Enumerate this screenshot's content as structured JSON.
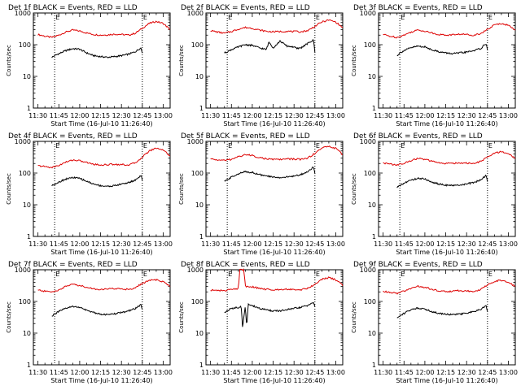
{
  "colors": {
    "events": "#000000",
    "lld": "#dd0000",
    "axis": "#000000",
    "marker": "#000000"
  },
  "chart_data": [
    {
      "type": "line",
      "title": "Det 1f BLACK = Events, RED = LLD",
      "xlabel": "Start Time (16-Jul-10 11:26:40)",
      "ylabel": "Counts/sec",
      "x_ticks": [
        "11:30",
        "11:45",
        "12:00",
        "12:15",
        "12:30",
        "12:45",
        "13:00"
      ],
      "y_ticks": [
        "1",
        "10",
        "100",
        "1000"
      ],
      "ylim": [
        1,
        1000
      ],
      "y_scale": "log",
      "x_units": "minutes after 11:30",
      "xlim": [
        -3.3,
        95
      ],
      "markers": [
        {
          "label": "E",
          "x": 12
        },
        {
          "label": "E",
          "x": 75
        }
      ],
      "series": [
        {
          "color": "red",
          "x": [
            0,
            5,
            10,
            15,
            20,
            25,
            30,
            35,
            40,
            45,
            50,
            55,
            60,
            65,
            70,
            75,
            80,
            85,
            90,
            95
          ],
          "values": [
            210,
            185,
            170,
            200,
            250,
            290,
            270,
            235,
            210,
            200,
            205,
            215,
            210,
            200,
            230,
            330,
            470,
            540,
            470,
            300
          ]
        },
        {
          "color": "black",
          "x": [
            10,
            12,
            15,
            20,
            25,
            30,
            35,
            40,
            45,
            50,
            55,
            60,
            65,
            70,
            74,
            75
          ],
          "values": [
            40,
            45,
            52,
            65,
            75,
            72,
            55,
            45,
            42,
            40,
            42,
            45,
            50,
            60,
            80,
            55
          ]
        }
      ]
    },
    {
      "type": "line",
      "title": "Det 2f BLACK = Events, RED = LLD",
      "xlabel": "Start Time (16-Jul-10 11:26:40)",
      "ylabel": "Counts/sec",
      "x_ticks": [
        "11:30",
        "11:45",
        "12:00",
        "12:15",
        "12:30",
        "12:45",
        "13:00"
      ],
      "y_ticks": [
        "1",
        "10",
        "100",
        "1000"
      ],
      "ylim": [
        1,
        1000
      ],
      "y_scale": "log",
      "x_units": "minutes after 11:30",
      "xlim": [
        -3.3,
        95
      ],
      "markers": [
        {
          "label": "E",
          "x": 12
        },
        {
          "label": "E",
          "x": 75
        }
      ],
      "series": [
        {
          "color": "red",
          "x": [
            0,
            5,
            10,
            15,
            20,
            25,
            30,
            35,
            40,
            45,
            50,
            55,
            60,
            65,
            70,
            75,
            80,
            85,
            90,
            95
          ],
          "values": [
            280,
            250,
            230,
            260,
            310,
            350,
            330,
            290,
            265,
            255,
            260,
            265,
            260,
            255,
            280,
            380,
            520,
            600,
            520,
            340
          ]
        },
        {
          "color": "black",
          "x": [
            10,
            12,
            15,
            20,
            25,
            30,
            35,
            40,
            42,
            45,
            50,
            55,
            60,
            62,
            65,
            70,
            74,
            75
          ],
          "values": [
            55,
            60,
            70,
            85,
            100,
            95,
            80,
            70,
            120,
            80,
            130,
            90,
            85,
            75,
            80,
            110,
            140,
            60
          ]
        }
      ]
    },
    {
      "type": "line",
      "title": "Det 3f BLACK = Events, RED = LLD",
      "xlabel": "Start Time (16-Jul-10 11:26:40)",
      "ylabel": "Counts/sec",
      "x_ticks": [
        "11:30",
        "11:45",
        "12:00",
        "12:15",
        "12:30",
        "12:45",
        "13:00"
      ],
      "y_ticks": [
        "1",
        "10",
        "100",
        "1000"
      ],
      "ylim": [
        1,
        1000
      ],
      "y_scale": "log",
      "x_units": "minutes after 11:30",
      "xlim": [
        -3.3,
        95
      ],
      "markers": [
        {
          "label": "E",
          "x": 12
        },
        {
          "label": "E",
          "x": 75
        }
      ],
      "series": [
        {
          "color": "red",
          "x": [
            0,
            5,
            10,
            15,
            20,
            25,
            30,
            35,
            40,
            45,
            50,
            55,
            60,
            65,
            70,
            75,
            80,
            85,
            90,
            95
          ],
          "values": [
            210,
            185,
            170,
            200,
            250,
            290,
            270,
            235,
            210,
            200,
            205,
            215,
            210,
            200,
            225,
            300,
            420,
            470,
            410,
            290
          ]
        },
        {
          "color": "black",
          "x": [
            10,
            12,
            15,
            20,
            25,
            30,
            35,
            40,
            45,
            50,
            55,
            60,
            65,
            70,
            74,
            75
          ],
          "values": [
            45,
            55,
            65,
            80,
            90,
            85,
            70,
            60,
            55,
            52,
            55,
            58,
            65,
            75,
            110,
            70
          ]
        }
      ]
    },
    {
      "type": "line",
      "title": "Det 4f BLACK = Events, RED = LLD",
      "xlabel": "Start Time (16-Jul-10 11:26:40)",
      "ylabel": "Counts/sec",
      "x_ticks": [
        "11:30",
        "11:45",
        "12:00",
        "12:15",
        "12:30",
        "12:45",
        "13:00"
      ],
      "y_ticks": [
        "1",
        "10",
        "100",
        "1000"
      ],
      "ylim": [
        1,
        1000
      ],
      "y_scale": "log",
      "x_units": "minutes after 11:30",
      "xlim": [
        -3.3,
        95
      ],
      "markers": [
        {
          "label": "E",
          "x": 12
        },
        {
          "label": "E",
          "x": 75
        }
      ],
      "series": [
        {
          "color": "red",
          "x": [
            0,
            5,
            10,
            15,
            20,
            25,
            30,
            35,
            40,
            45,
            50,
            55,
            60,
            65,
            70,
            75,
            80,
            85,
            90,
            95
          ],
          "values": [
            170,
            160,
            150,
            175,
            220,
            260,
            245,
            215,
            190,
            180,
            185,
            190,
            185,
            180,
            210,
            320,
            500,
            620,
            540,
            350
          ]
        },
        {
          "color": "black",
          "x": [
            10,
            12,
            15,
            20,
            25,
            30,
            35,
            40,
            45,
            50,
            55,
            60,
            65,
            70,
            74,
            75
          ],
          "values": [
            40,
            45,
            52,
            65,
            72,
            68,
            55,
            45,
            40,
            38,
            40,
            45,
            50,
            60,
            85,
            60
          ]
        }
      ]
    },
    {
      "type": "line",
      "title": "Det 5f BLACK = Events, RED = LLD",
      "xlabel": "Start Time (16-Jul-10 11:26:40)",
      "ylabel": "Counts/sec",
      "x_ticks": [
        "11:30",
        "11:45",
        "12:00",
        "12:15",
        "12:30",
        "12:45",
        "13:00"
      ],
      "y_ticks": [
        "1",
        "10",
        "100",
        "1000"
      ],
      "ylim": [
        1,
        1000
      ],
      "y_scale": "log",
      "x_units": "minutes after 11:30",
      "xlim": [
        -3.3,
        95
      ],
      "markers": [
        {
          "label": "E",
          "x": 12
        },
        {
          "label": "E",
          "x": 75
        }
      ],
      "series": [
        {
          "color": "red",
          "x": [
            0,
            5,
            10,
            15,
            20,
            25,
            30,
            35,
            40,
            45,
            50,
            55,
            60,
            65,
            70,
            75,
            80,
            85,
            90,
            95
          ],
          "values": [
            280,
            260,
            250,
            270,
            330,
            380,
            360,
            310,
            280,
            270,
            270,
            280,
            275,
            270,
            300,
            420,
            620,
            700,
            600,
            380
          ]
        },
        {
          "color": "black",
          "x": [
            10,
            12,
            15,
            20,
            25,
            30,
            35,
            40,
            45,
            50,
            55,
            60,
            65,
            70,
            74,
            75
          ],
          "values": [
            55,
            60,
            75,
            95,
            110,
            105,
            90,
            80,
            75,
            72,
            75,
            80,
            90,
            110,
            160,
            95
          ]
        }
      ]
    },
    {
      "type": "line",
      "title": "Det 6f BLACK = Events, RED = LLD",
      "xlabel": "Start Time (16-Jul-10 11:26:40)",
      "ylabel": "Counts/sec",
      "x_ticks": [
        "11:30",
        "11:45",
        "12:00",
        "12:15",
        "12:30",
        "12:45",
        "13:00"
      ],
      "y_ticks": [
        "1",
        "10",
        "100",
        "1000"
      ],
      "ylim": [
        1,
        1000
      ],
      "y_scale": "log",
      "x_units": "minutes after 11:30",
      "xlim": [
        -3.3,
        95
      ],
      "markers": [
        {
          "label": "E",
          "x": 12
        },
        {
          "label": "E",
          "x": 75
        }
      ],
      "series": [
        {
          "color": "red",
          "x": [
            0,
            5,
            10,
            15,
            20,
            25,
            30,
            35,
            40,
            45,
            50,
            55,
            60,
            65,
            70,
            75,
            80,
            85,
            90,
            95
          ],
          "values": [
            210,
            190,
            180,
            200,
            250,
            290,
            270,
            235,
            210,
            200,
            205,
            210,
            205,
            200,
            230,
            320,
            420,
            470,
            410,
            290
          ]
        },
        {
          "color": "black",
          "x": [
            10,
            12,
            15,
            20,
            25,
            30,
            35,
            40,
            45,
            50,
            55,
            60,
            65,
            70,
            74,
            75
          ],
          "values": [
            35,
            40,
            48,
            60,
            68,
            65,
            52,
            45,
            42,
            40,
            42,
            45,
            50,
            60,
            85,
            55
          ]
        }
      ]
    },
    {
      "type": "line",
      "title": "Det 7f BLACK = Events, RED = LLD",
      "xlabel": "Start Time (16-Jul-10 11:26:40)",
      "ylabel": "Counts/sec",
      "x_ticks": [
        "11:30",
        "11:45",
        "12:00",
        "12:15",
        "12:30",
        "12:45",
        "13:00"
      ],
      "y_ticks": [
        "1",
        "10",
        "100",
        "1000"
      ],
      "ylim": [
        1,
        1000
      ],
      "y_scale": "log",
      "x_units": "minutes after 11:30",
      "xlim": [
        -3.3,
        95
      ],
      "markers": [
        {
          "label": "E",
          "x": 12
        },
        {
          "label": "E",
          "x": 75
        }
      ],
      "series": [
        {
          "color": "red",
          "x": [
            0,
            5,
            10,
            15,
            20,
            25,
            30,
            35,
            40,
            45,
            50,
            55,
            60,
            65,
            70,
            75,
            80,
            85,
            90,
            95
          ],
          "values": [
            230,
            210,
            200,
            230,
            300,
            350,
            320,
            280,
            250,
            240,
            245,
            255,
            250,
            240,
            270,
            370,
            460,
            480,
            420,
            300
          ]
        },
        {
          "color": "black",
          "x": [
            10,
            12,
            15,
            20,
            25,
            30,
            35,
            40,
            45,
            50,
            55,
            60,
            65,
            70,
            74,
            75
          ],
          "values": [
            35,
            40,
            48,
            60,
            70,
            65,
            52,
            45,
            40,
            38,
            40,
            45,
            50,
            60,
            80,
            55
          ]
        }
      ]
    },
    {
      "type": "line",
      "title": "Det 8f BLACK = Events, RED = LLD",
      "xlabel": "Start Time (16-Jul-10 11:26:40)",
      "ylabel": "Counts/sec",
      "x_ticks": [
        "11:30",
        "11:45",
        "12:00",
        "12:15",
        "12:30",
        "12:45",
        "13:00"
      ],
      "y_ticks": [
        "1",
        "10",
        "100",
        "1000"
      ],
      "ylim": [
        1,
        1000
      ],
      "y_scale": "log",
      "x_units": "minutes after 11:30",
      "xlim": [
        -3.3,
        95
      ],
      "markers": [
        {
          "label": "E",
          "x": 12
        },
        {
          "label": "E",
          "x": 75
        }
      ],
      "series": [
        {
          "color": "red",
          "x": [
            0,
            5,
            10,
            15,
            20,
            21,
            22,
            23,
            24,
            25,
            30,
            35,
            40,
            45,
            50,
            55,
            60,
            65,
            70,
            75,
            80,
            85,
            90,
            95
          ],
          "values": [
            230,
            220,
            220,
            240,
            250,
            1000,
            1000,
            1000,
            1000,
            300,
            290,
            260,
            240,
            235,
            240,
            245,
            240,
            235,
            260,
            350,
            500,
            560,
            480,
            320
          ]
        },
        {
          "color": "black",
          "x": [
            10,
            12,
            15,
            20,
            22,
            23,
            25,
            26,
            27,
            30,
            35,
            40,
            45,
            50,
            55,
            60,
            65,
            70,
            74,
            75
          ],
          "values": [
            45,
            50,
            60,
            65,
            70,
            15,
            70,
            15,
            80,
            75,
            60,
            55,
            50,
            50,
            55,
            60,
            65,
            75,
            95,
            65
          ]
        }
      ]
    },
    {
      "type": "line",
      "title": "Det 9f BLACK = Events, RED = LLD",
      "xlabel": "Start Time (16-Jul-10 11:26:40)",
      "ylabel": "Counts/sec",
      "x_ticks": [
        "11:30",
        "11:45",
        "12:00",
        "12:15",
        "12:30",
        "12:45",
        "13:00"
      ],
      "y_ticks": [
        "1",
        "10",
        "100",
        "1000"
      ],
      "ylim": [
        1,
        1000
      ],
      "y_scale": "log",
      "x_units": "minutes after 11:30",
      "xlim": [
        -3.3,
        95
      ],
      "markers": [
        {
          "label": "E",
          "x": 12
        },
        {
          "label": "E",
          "x": 75
        }
      ],
      "series": [
        {
          "color": "red",
          "x": [
            0,
            5,
            10,
            15,
            20,
            25,
            30,
            35,
            40,
            45,
            50,
            55,
            60,
            65,
            70,
            75,
            80,
            85,
            90,
            95
          ],
          "values": [
            210,
            190,
            180,
            210,
            260,
            300,
            280,
            240,
            215,
            205,
            210,
            220,
            215,
            205,
            235,
            330,
            430,
            470,
            410,
            290
          ]
        },
        {
          "color": "black",
          "x": [
            10,
            12,
            15,
            20,
            25,
            30,
            35,
            40,
            45,
            50,
            55,
            60,
            65,
            70,
            74,
            75
          ],
          "values": [
            30,
            35,
            42,
            55,
            62,
            58,
            48,
            42,
            40,
            38,
            40,
            42,
            48,
            55,
            75,
            50
          ]
        }
      ]
    }
  ]
}
